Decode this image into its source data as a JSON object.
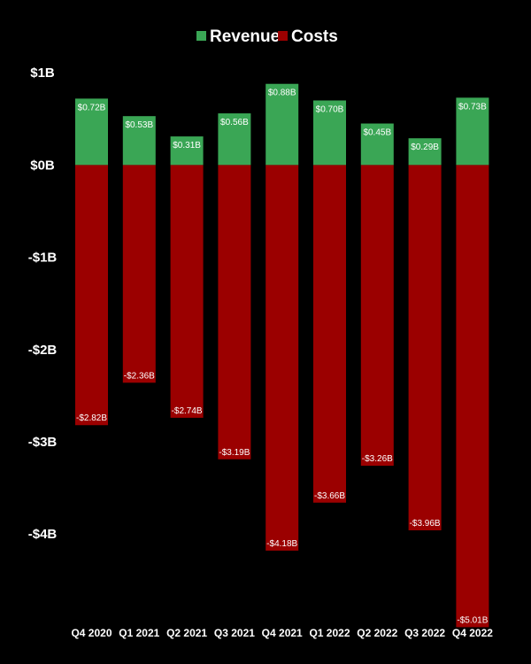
{
  "chart_data": {
    "type": "bar",
    "stacked": true,
    "categories": [
      "Q4 2020",
      "Q1 2021",
      "Q2 2021",
      "Q3 2021",
      "Q4 2021",
      "Q1 2022",
      "Q2 2022",
      "Q3 2022",
      "Q4 2022"
    ],
    "series": [
      {
        "name": "Revenue",
        "color": "#3aa655",
        "values": [
          0.72,
          0.53,
          0.31,
          0.56,
          0.88,
          0.7,
          0.45,
          0.29,
          0.73
        ],
        "labels": [
          "$0.72B",
          "$0.53B",
          "$0.31B",
          "$0.56B",
          "$0.88B",
          "$0.70B",
          "$0.45B",
          "$0.29B",
          "$0.73B"
        ]
      },
      {
        "name": "Costs",
        "color": "#9b0000",
        "values": [
          -2.82,
          -2.36,
          -2.74,
          -3.19,
          -4.18,
          -3.66,
          -3.26,
          -3.96,
          -5.01
        ],
        "labels": [
          "-$2.82B",
          "-$2.36B",
          "-$2.74B",
          "-$3.19B",
          "-$4.18B",
          "-$3.66B",
          "-$3.26B",
          "-$3.96B",
          "-$5.01B"
        ]
      }
    ],
    "y_ticks": [
      {
        "value": 1,
        "label": "$1B"
      },
      {
        "value": 0,
        "label": "$0B"
      },
      {
        "value": -1,
        "label": "-$1B"
      },
      {
        "value": -2,
        "label": "-$2B"
      },
      {
        "value": -3,
        "label": "-$3B"
      },
      {
        "value": -4,
        "label": "-$4B"
      }
    ],
    "ylim": [
      -5.15,
      1.05
    ],
    "grid": false,
    "legend_position": "top-center",
    "background": "#000000"
  }
}
